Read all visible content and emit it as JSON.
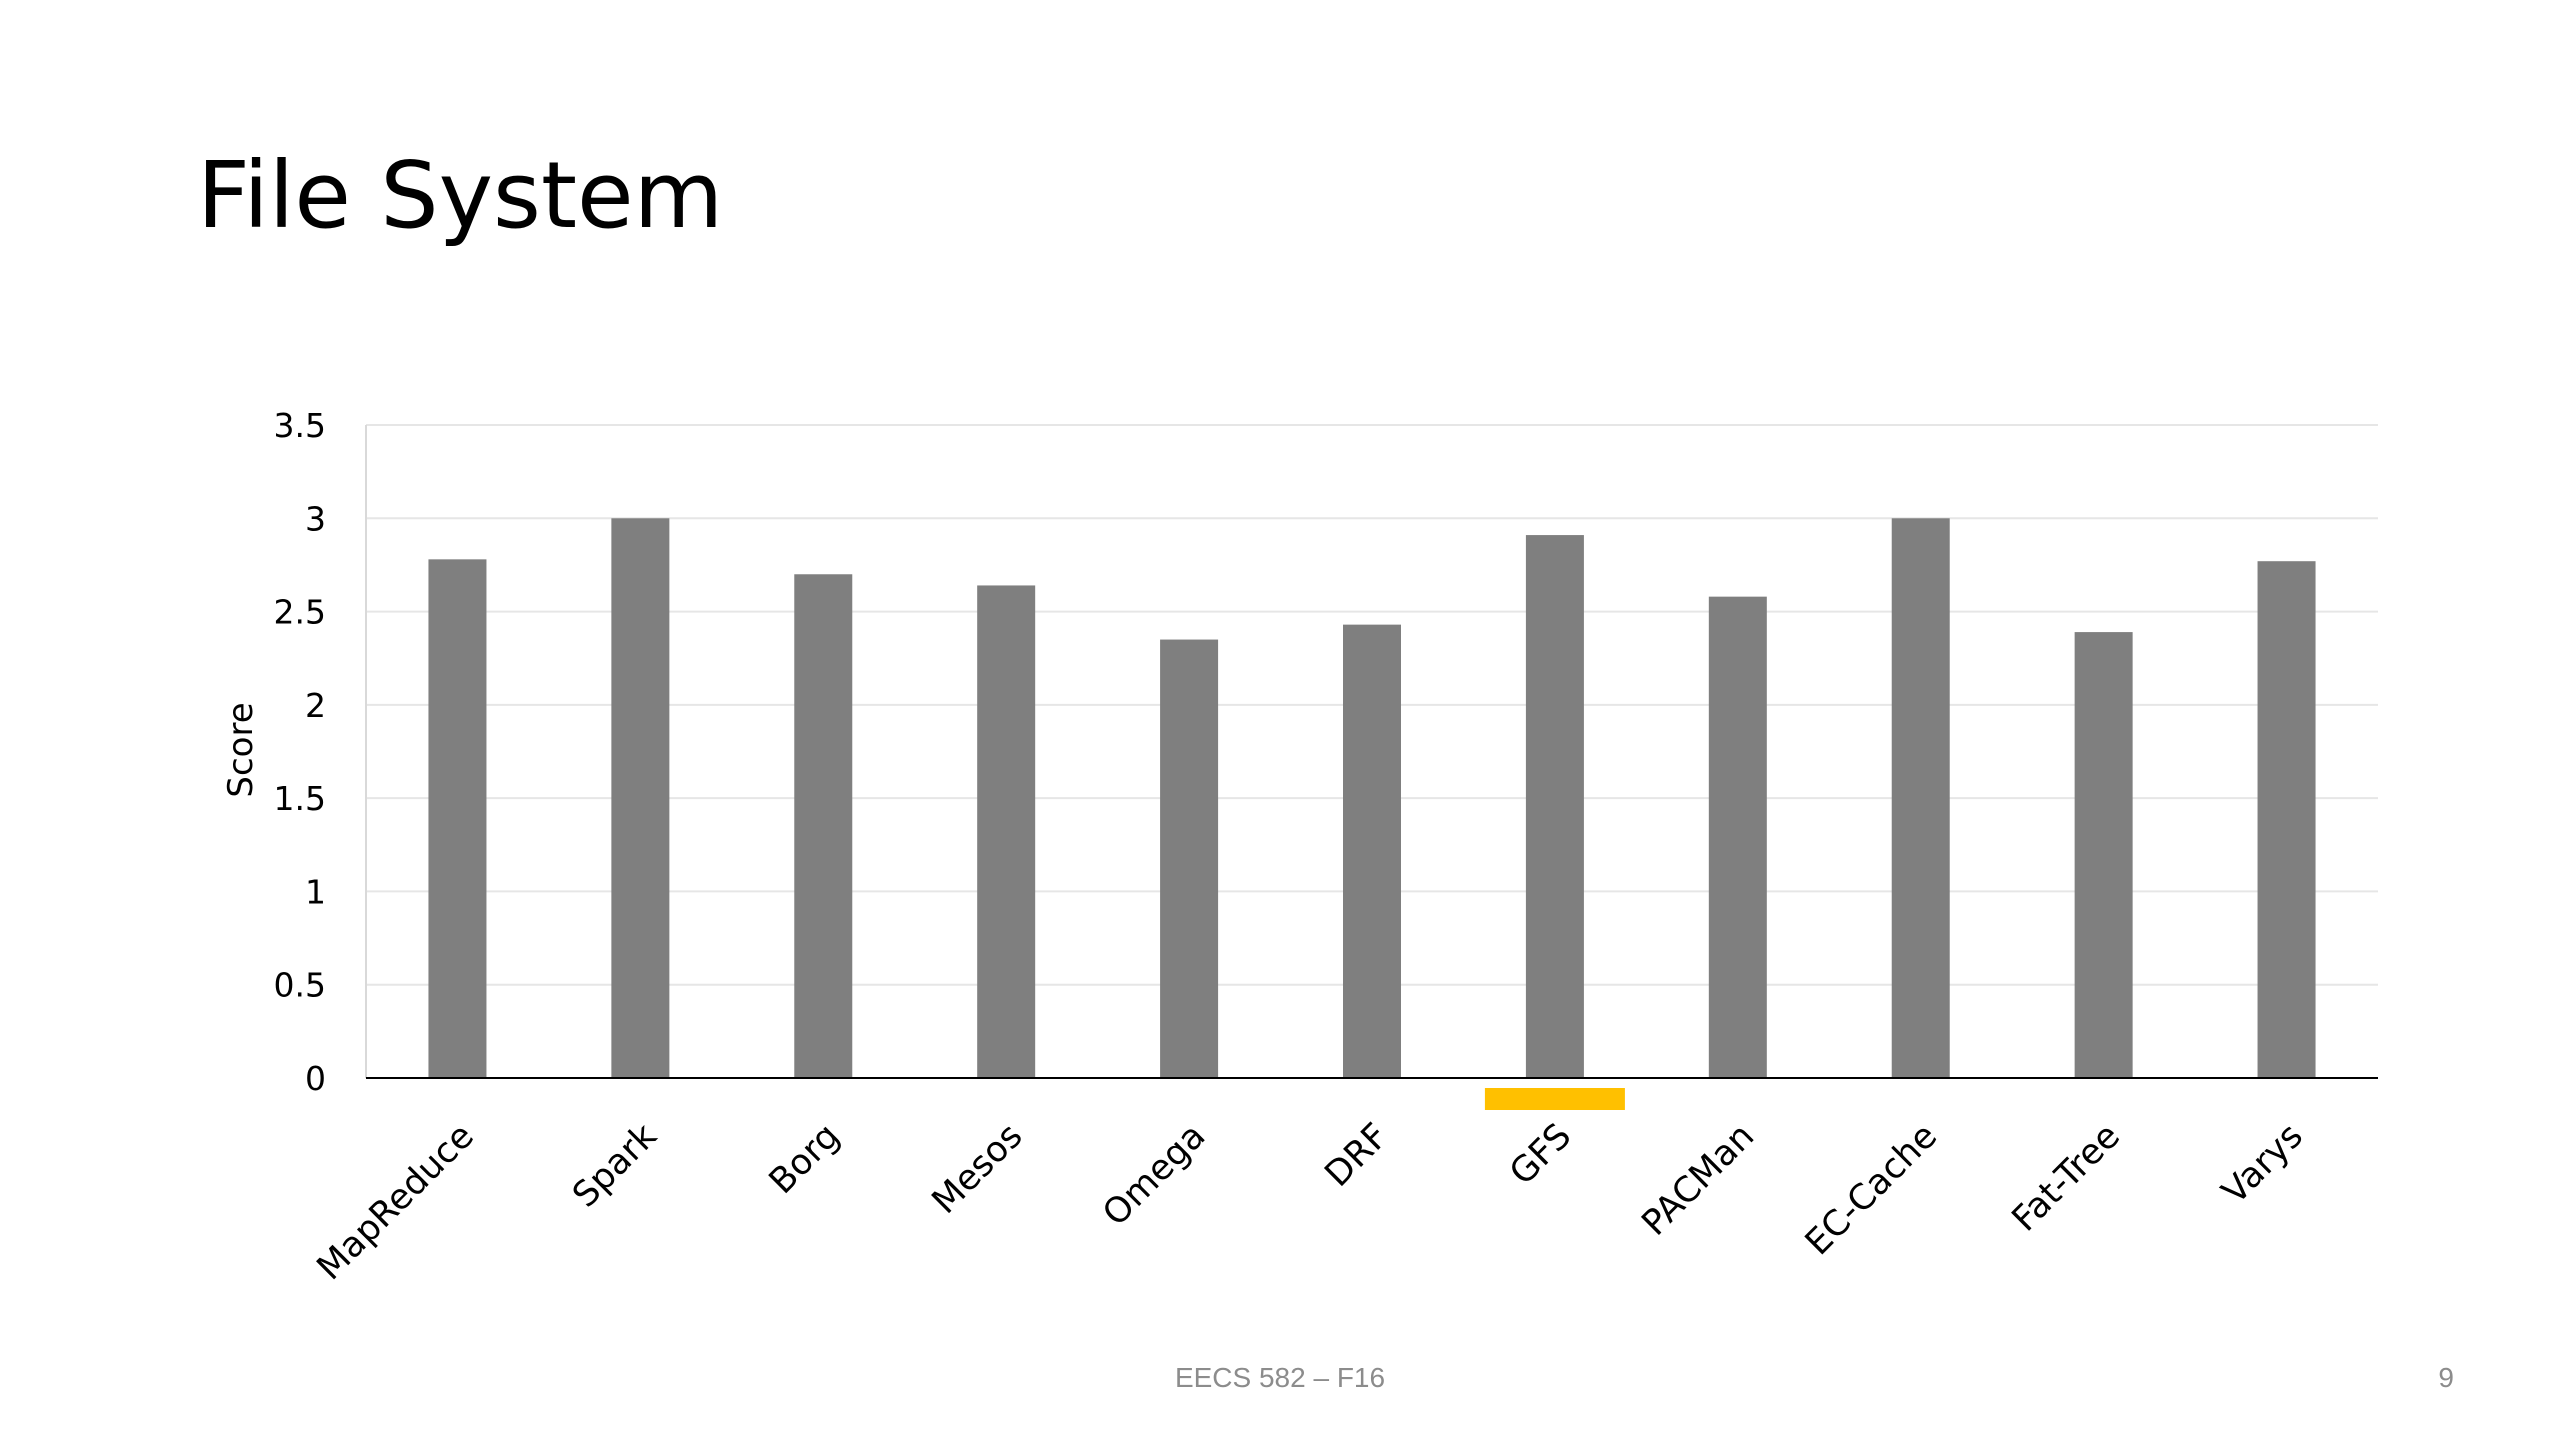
{
  "slide": {
    "title": "File System",
    "footer": "EECS 582 – F16",
    "page_number": "9"
  },
  "colors": {
    "bar": "#7f7f7f",
    "highlight": "#ffc000",
    "grid": "#e6e6e6",
    "axis": "#000000"
  },
  "chart_data": {
    "type": "bar",
    "title": "",
    "xlabel": "",
    "ylabel": "Score",
    "ylim": [
      0,
      3.5
    ],
    "yticks": [
      "0",
      "0.5",
      "1",
      "1.5",
      "2",
      "2.5",
      "3",
      "3.5"
    ],
    "grid": true,
    "categories": [
      "MapReduce",
      "Spark",
      "Borg",
      "Mesos",
      "Omega",
      "DRF",
      "GFS",
      "PACMan",
      "EC-Cache",
      "Fat-Tree",
      "Varys"
    ],
    "values": [
      2.78,
      3.0,
      2.7,
      2.64,
      2.35,
      2.43,
      2.91,
      2.58,
      3.0,
      2.39,
      2.77
    ],
    "highlighted_category": "GFS"
  }
}
